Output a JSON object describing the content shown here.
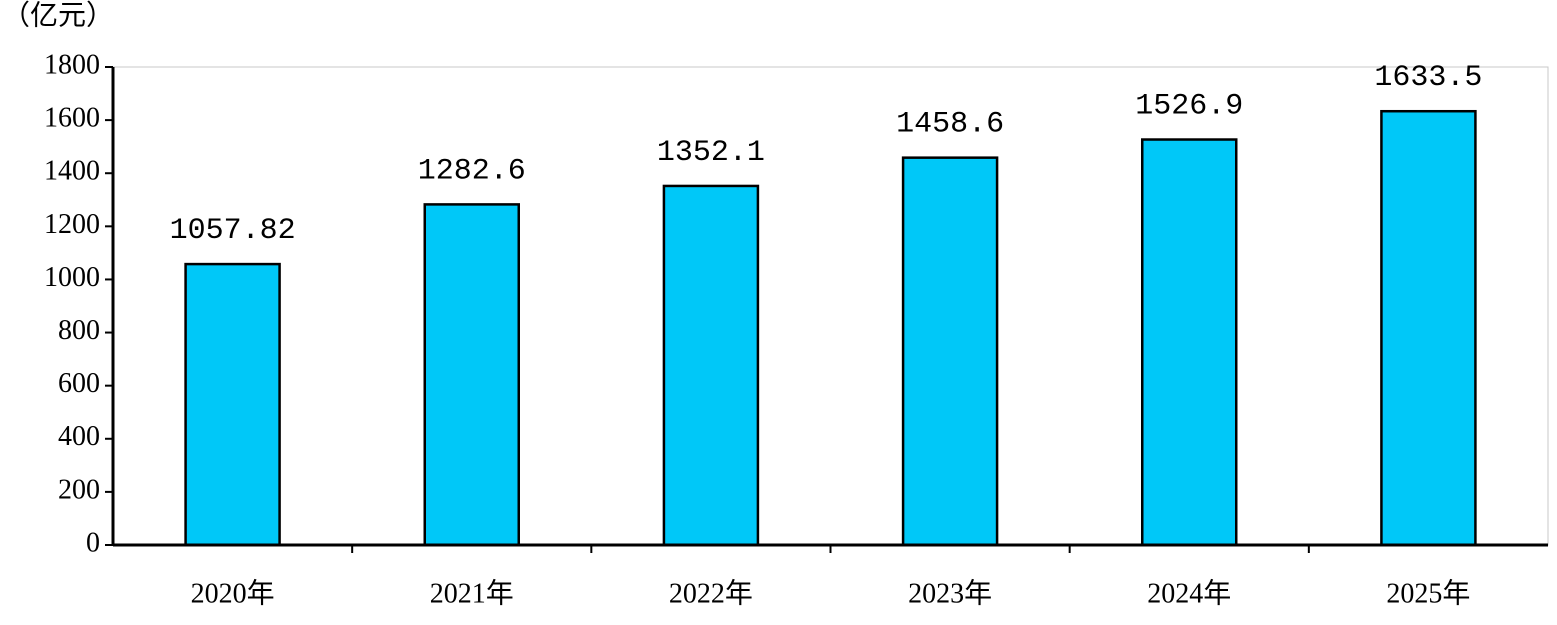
{
  "chart_data": {
    "type": "bar",
    "y_label": "（亿元）",
    "categories": [
      "2020年",
      "2021年",
      "2022年",
      "2023年",
      "2024年",
      "2025年"
    ],
    "values": [
      1057.82,
      1282.6,
      1352.1,
      1458.6,
      1526.9,
      1633.5
    ],
    "color": "#00c8f8",
    "ylim": [
      0,
      1800
    ],
    "yticks": [
      0,
      200,
      400,
      600,
      800,
      1000,
      1200,
      1400,
      1600,
      1800
    ]
  }
}
